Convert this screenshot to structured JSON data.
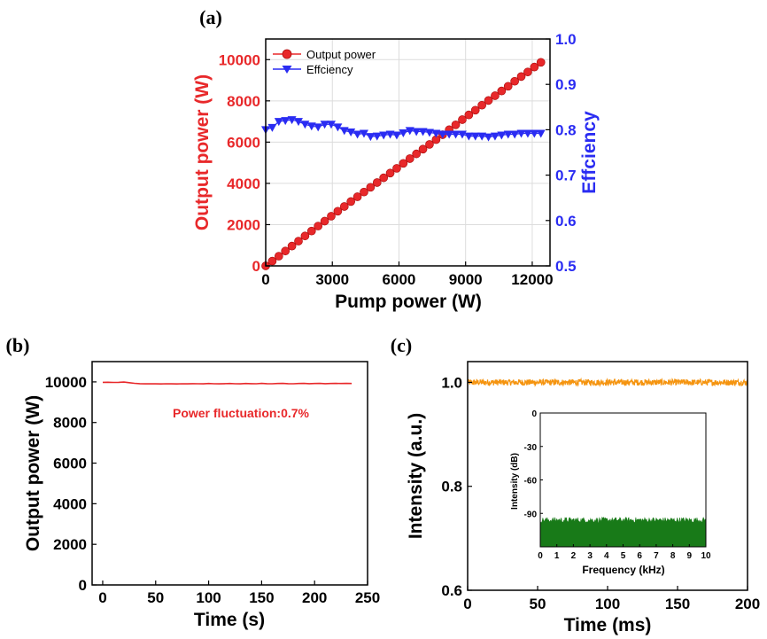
{
  "colors": {
    "red": "#e8282a",
    "blue": "#2a2cf2",
    "orange": "#f5940f",
    "green": "#187a18",
    "grid": "#dcdcdc"
  },
  "panel_labels": {
    "a": "(a)",
    "b": "(b)",
    "c": "(c)"
  },
  "chart_data": [
    {
      "panel": "(a)",
      "type": "line",
      "xlabel": "Pump power (W)",
      "ylabel": "Output power (W)",
      "y2label": "Effciency",
      "xlim": [
        0,
        12800
      ],
      "ylim": [
        0,
        11000
      ],
      "y2lim": [
        0.5,
        1.0
      ],
      "xticks": [
        0,
        3000,
        6000,
        9000,
        12000
      ],
      "yticks": [
        0,
        2000,
        4000,
        6000,
        8000,
        10000
      ],
      "y2ticks": [
        0.5,
        0.6,
        0.7,
        0.8,
        0.9,
        1.0
      ],
      "y2ticklabels": [
        "0.5",
        "0.6",
        "0.7",
        "0.8",
        "0.9",
        "1.0"
      ],
      "grid": true,
      "legend_position": "top-left",
      "series": [
        {
          "name": "Output power",
          "axis": "left",
          "marker": "circle",
          "color": "red",
          "x": [
            0,
            295,
            590,
            885,
            1180,
            1475,
            1770,
            2065,
            2360,
            2655,
            2950,
            3245,
            3540,
            3835,
            4130,
            4425,
            4720,
            5015,
            5310,
            5605,
            5900,
            6195,
            6490,
            6785,
            7080,
            7375,
            7670,
            7965,
            8260,
            8555,
            8850,
            9145,
            9440,
            9735,
            10030,
            10325,
            10620,
            10915,
            11210,
            11505,
            11800,
            12095,
            12390
          ],
          "y": [
            0,
            230,
            470,
            720,
            960,
            1200,
            1450,
            1690,
            1930,
            2170,
            2410,
            2650,
            2880,
            3120,
            3350,
            3580,
            3810,
            4040,
            4270,
            4500,
            4730,
            4970,
            5200,
            5430,
            5660,
            5890,
            6120,
            6360,
            6600,
            6840,
            7090,
            7320,
            7550,
            7790,
            8020,
            8250,
            8480,
            8710,
            8950,
            9180,
            9400,
            9640,
            9870
          ]
        },
        {
          "name": "Effciency",
          "axis": "right",
          "marker": "triangle-down",
          "color": "blue",
          "x": [
            0,
            295,
            590,
            885,
            1180,
            1475,
            1770,
            2065,
            2360,
            2655,
            2950,
            3245,
            3540,
            3835,
            4130,
            4425,
            4720,
            5015,
            5310,
            5605,
            5900,
            6195,
            6490,
            6785,
            7080,
            7375,
            7670,
            7965,
            8260,
            8555,
            8850,
            9145,
            9440,
            9735,
            10030,
            10325,
            10620,
            10915,
            11210,
            11505,
            11800,
            12095,
            12390
          ],
          "y": [
            0.8,
            0.805,
            0.818,
            0.82,
            0.822,
            0.818,
            0.812,
            0.808,
            0.806,
            0.812,
            0.812,
            0.806,
            0.798,
            0.795,
            0.79,
            0.792,
            0.785,
            0.786,
            0.788,
            0.79,
            0.788,
            0.793,
            0.798,
            0.796,
            0.796,
            0.794,
            0.792,
            0.79,
            0.79,
            0.79,
            0.79,
            0.786,
            0.786,
            0.786,
            0.784,
            0.786,
            0.788,
            0.79,
            0.79,
            0.792,
            0.792,
            0.792,
            0.792
          ]
        }
      ]
    },
    {
      "panel": "(b)",
      "type": "line",
      "xlabel": "Time (s)",
      "ylabel": "Output power (W)",
      "xlim": [
        -10,
        250
      ],
      "ylim": [
        0,
        11000
      ],
      "xticks": [
        0,
        50,
        100,
        150,
        200,
        250
      ],
      "yticks": [
        0,
        2000,
        4000,
        6000,
        8000,
        10000
      ],
      "grid": false,
      "annotation": "Power fluctuation:0.7%",
      "series": [
        {
          "color": "red",
          "x": [
            0,
            5,
            10,
            15,
            20,
            25,
            30,
            35,
            40,
            45,
            50,
            55,
            60,
            65,
            70,
            75,
            80,
            85,
            90,
            95,
            100,
            105,
            110,
            115,
            120,
            125,
            130,
            135,
            140,
            145,
            150,
            155,
            160,
            165,
            170,
            175,
            180,
            185,
            190,
            195,
            200,
            205,
            210,
            215,
            220,
            225,
            230,
            235
          ],
          "y": [
            9980,
            9985,
            9975,
            9978,
            9990,
            9960,
            9930,
            9915,
            9905,
            9910,
            9905,
            9900,
            9910,
            9905,
            9900,
            9910,
            9905,
            9915,
            9910,
            9905,
            9920,
            9910,
            9905,
            9915,
            9920,
            9910,
            9905,
            9920,
            9915,
            9910,
            9925,
            9915,
            9910,
            9920,
            9925,
            9915,
            9910,
            9920,
            9925,
            9915,
            9920,
            9925,
            9915,
            9920,
            9925,
            9920,
            9925,
            9920
          ]
        }
      ]
    },
    {
      "panel": "(c)",
      "type": "line",
      "xlabel": "Time (ms)",
      "ylabel": "Intensity (a.u.)",
      "xlim": [
        0,
        200
      ],
      "ylim": [
        0.6,
        1.04
      ],
      "xticks": [
        0,
        50,
        100,
        150,
        200
      ],
      "yticks": [
        0.6,
        0.8,
        1.0
      ],
      "yticklabels": [
        "0.6",
        "0.8",
        "1.0"
      ],
      "grid": false,
      "series": [
        {
          "color": "orange",
          "description_mean": 1.0,
          "noise_amplitude": 0.006
        }
      ],
      "inset": {
        "type": "line",
        "xlabel": "Frequency (kHz)",
        "ylabel": "Intensity (dB)",
        "xlim": [
          0,
          10
        ],
        "ylim": [
          -120,
          0
        ],
        "xticks": [
          0,
          1,
          2,
          3,
          4,
          5,
          6,
          7,
          8,
          9,
          10
        ],
        "yticks": [
          -90,
          -60,
          -30,
          0
        ],
        "series": [
          {
            "color": "green",
            "description_floor": -108,
            "description_top": -96
          }
        ]
      }
    }
  ]
}
